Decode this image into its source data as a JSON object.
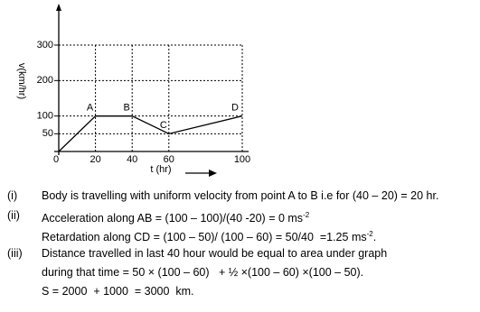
{
  "chart_data": {
    "type": "line",
    "y_label": "v(km/hr)",
    "x_label": "t (hr)",
    "x": [
      0,
      20,
      40,
      60,
      100
    ],
    "values": [
      0,
      100,
      100,
      50,
      100
    ],
    "point_labels": [
      null,
      "A",
      "B",
      "C",
      "D"
    ],
    "xlim": [
      0,
      100
    ],
    "ylim": [
      0,
      300
    ],
    "xticks": [
      0,
      20,
      40,
      60,
      100
    ],
    "yticks": [
      50,
      100,
      200,
      300
    ],
    "grid": true,
    "color": "#000000"
  },
  "notes": [
    {
      "label": "(i)",
      "lines": [
        {
          "text": "Body is travelling with uniform velocity from point A to B i.e for (40 – 20) = 20 hr."
        }
      ]
    },
    {
      "label": "(ii)",
      "lines": [
        {
          "text": "Acceleration along AB = (100 – 100)/(40 -20) = 0 ms",
          "sup": "-2"
        },
        {
          "text": "Retardation along CD = (100 – 50)/ (100 – 60) = 50/40  =1.25 ms",
          "sup": "-2",
          "after": "."
        }
      ]
    },
    {
      "label": "(iii)",
      "lines": [
        {
          "text": "Distance travelled in last 40 hour would be equal to area under graph"
        },
        {
          "text": "during that time = 50 × (100 – 60)   + ½ ×(100 – 60) ×(100 – 50)."
        },
        {
          "text": "S = 2000  + 1000  = 3000  km."
        }
      ]
    }
  ]
}
